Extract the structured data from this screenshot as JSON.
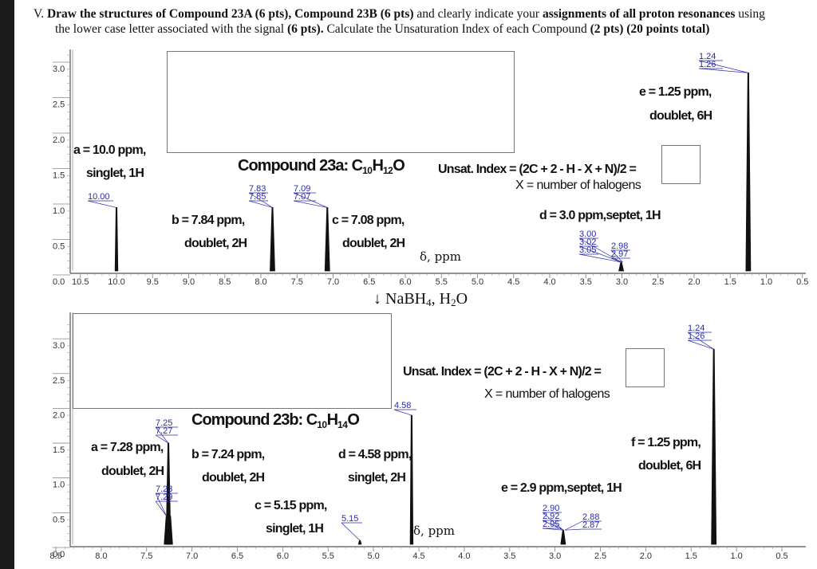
{
  "question": {
    "prefix": "V. ",
    "line1_parts": [
      {
        "t": "Draw the structures of Compound 23A (6 pts), Compound 23B (6 pts)",
        "b": true
      },
      {
        "t": " and clearly indicate your ",
        "b": false
      },
      {
        "t": "assignments of all proton resonances",
        "b": true
      },
      {
        "t": " using",
        "b": false
      }
    ],
    "line2_parts": [
      {
        "t": "the lower case letter associated with the signal ",
        "b": false
      },
      {
        "t": "(6 pts).",
        "b": true
      },
      {
        "t": " Calculate the Unsaturation Index of each Compound ",
        "b": false
      },
      {
        "t": "(2 pts) (20 points total)",
        "b": true
      }
    ]
  },
  "reagent": {
    "arrow": "↓",
    "text_parts": [
      "NaBH",
      "4",
      ", H",
      "2",
      "O"
    ]
  },
  "spectrum_a": {
    "title_prefix": "Compound 23a: C",
    "formula_c": "10",
    "formula_h_prefix": "H",
    "formula_h": "12",
    "formula_suffix": "O",
    "unsat_formula": "Unsat. Index = (2C + 2 - H - X + N)/2 =",
    "unsat_note": "X = number of halogens",
    "axis_label": "δ, ppm",
    "signals": [
      {
        "letter": "a",
        "line1": "a = 10.0 ppm,",
        "line2": "singlet, 1H"
      },
      {
        "letter": "b",
        "line1": "b = 7.84 ppm,",
        "line2": "doublet, 2H"
      },
      {
        "letter": "c",
        "line1": "c = 7.08 ppm,",
        "line2": "doublet, 2H"
      },
      {
        "letter": "d",
        "line1": "d = 3.0 ppm,septet,  1H",
        "line2": ""
      },
      {
        "letter": "e",
        "line1": "e = 1.25 ppm,",
        "line2": "doublet, 6H"
      }
    ],
    "peak_labels": {
      "p1": [
        "10.00"
      ],
      "p2": [
        "7.83",
        "7.85"
      ],
      "p3": [
        "7.09",
        "7.07"
      ],
      "p4l": [
        "3.00",
        "3.02",
        "3.05"
      ],
      "p4r": [
        "2.98",
        "2.97"
      ],
      "p5": [
        "1.24",
        "1.26"
      ]
    },
    "x_ticks": [
      "10.5",
      "10.0",
      "9.5",
      "9.0",
      "8.5",
      "8.0",
      "7.5",
      "7.0",
      "6.5",
      "6.0",
      "5.5",
      "5.0",
      "4.5",
      "4.0",
      "3.5",
      "3.0",
      "2.5",
      "2.0",
      "1.5",
      "1.0",
      "0.5"
    ],
    "y_ticks": [
      "0.0",
      "0.5",
      "1.0",
      "1.5",
      "2.0",
      "2.5",
      "3.0"
    ]
  },
  "spectrum_b": {
    "title_prefix": "Compound 23b: C",
    "formula_c": "10",
    "formula_h_prefix": "H",
    "formula_h": "14",
    "formula_suffix": "O",
    "unsat_formula": "Unsat. Index = (2C + 2 - H - X + N)/2 =",
    "unsat_note": "X = number of halogens",
    "axis_label": "δ, ppm",
    "signals": [
      {
        "letter": "a",
        "line1": "a = 7.28 ppm,",
        "line2": "doublet, 2H"
      },
      {
        "letter": "b",
        "line1": "b = 7.24 ppm,",
        "line2": "doublet, 2H"
      },
      {
        "letter": "c",
        "line1": "c = 5.15 ppm,",
        "line2": "singlet, 1H"
      },
      {
        "letter": "d",
        "line1": "d = 4.58 ppm,",
        "line2": "singlet, 2H"
      },
      {
        "letter": "e",
        "line1": "e = 2.9 ppm,septet,  1H",
        "line2": ""
      },
      {
        "letter": "f",
        "line1": "f = 1.25 ppm,",
        "line2": "doublet, 6H"
      }
    ],
    "peak_labels": {
      "p1top": [
        "7.25",
        "7.27"
      ],
      "p1bot": [
        "7.23",
        "7.29"
      ],
      "p2": [
        "5.15"
      ],
      "p3": [
        "4.58"
      ],
      "p4l": [
        "2.90",
        "2.92",
        "2.95"
      ],
      "p4r": [
        "2.88",
        "2.87"
      ],
      "p5": [
        "1.24",
        "1.26"
      ]
    },
    "x_ticks": [
      "8.5",
      "8.0",
      "7.5",
      "7.0",
      "6.5",
      "6.0",
      "5.5",
      "5.0",
      "4.5",
      "4.0",
      "3.5",
      "3.0",
      "2.5",
      "2.0",
      "1.5",
      "1.0",
      "0.5"
    ],
    "y_ticks": [
      "0.0",
      "0.5",
      "1.0",
      "1.5",
      "2.0",
      "2.5",
      "3.0"
    ]
  },
  "colors": {
    "peak_label": "#2a2aa8",
    "axis": "#555555",
    "text": "#111111"
  },
  "chart_data": [
    {
      "type": "line",
      "title": "Compound 23a: C10H12O (1H NMR)",
      "xlabel": "δ, ppm",
      "ylabel": "",
      "xlim": [
        10.7,
        0.4
      ],
      "ylim": [
        0,
        3.2
      ],
      "peaks": [
        {
          "ppm": 10.0,
          "height": 0.95,
          "label": "a",
          "mult": "singlet",
          "H": 1
        },
        {
          "ppm": 7.84,
          "height": 0.95,
          "label": "b",
          "mult": "doublet",
          "H": 2
        },
        {
          "ppm": 7.08,
          "height": 0.95,
          "label": "c",
          "mult": "doublet",
          "H": 2
        },
        {
          "ppm": 3.01,
          "height": 0.18,
          "label": "d",
          "mult": "septet",
          "H": 1
        },
        {
          "ppm": 1.25,
          "height": 2.85,
          "label": "e",
          "mult": "doublet",
          "H": 6
        }
      ]
    },
    {
      "type": "line",
      "title": "Compound 23b: C10H14O (1H NMR)",
      "xlabel": "δ, ppm",
      "ylabel": "",
      "xlim": [
        8.55,
        0.4
      ],
      "ylim": [
        0,
        3.3
      ],
      "peaks": [
        {
          "ppm": 7.28,
          "height": 0.45,
          "label": "a",
          "mult": "doublet",
          "H": 2
        },
        {
          "ppm": 7.26,
          "height": 1.5,
          "label": "a/b",
          "mult": "doublet",
          "H": 2
        },
        {
          "ppm": 7.24,
          "height": 0.45,
          "label": "b",
          "mult": "doublet",
          "H": 2
        },
        {
          "ppm": 5.15,
          "height": 0.1,
          "label": "c",
          "mult": "singlet",
          "H": 1
        },
        {
          "ppm": 4.58,
          "height": 1.9,
          "label": "d",
          "mult": "singlet",
          "H": 2
        },
        {
          "ppm": 2.91,
          "height": 0.25,
          "label": "e",
          "mult": "septet",
          "H": 1
        },
        {
          "ppm": 1.25,
          "height": 2.85,
          "label": "f",
          "mult": "doublet",
          "H": 6
        }
      ]
    }
  ]
}
